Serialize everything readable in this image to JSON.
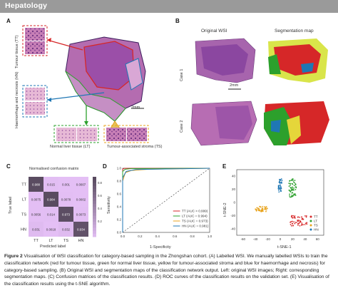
{
  "header": {
    "title": "Hepatology"
  },
  "panelA": {
    "letter": "A",
    "tt_label": "Tumour tissue (TT)",
    "hn_label": "Haemorrhage and necrosis (HN)",
    "lt_label": "Normal liver tissue (LT)",
    "ts_label": "Tumour-associated stroma (TS)",
    "scale": "2mm"
  },
  "panelB": {
    "letter": "B",
    "col1": "Original WSI",
    "col2": "Segmentation map",
    "row1": "Case 1",
    "row2": "Case 2",
    "scale": "2mm"
  },
  "panelC": {
    "letter": "C",
    "title": "Normalised confusion matrix",
    "ylabel": "True label",
    "xlabel": "Predicted label",
    "rows": [
      "TT",
      "LT",
      "TS",
      "HN"
    ],
    "cols": [
      "TT",
      "LT",
      "TS",
      "HN"
    ],
    "values": [
      [
        "0.988",
        "0.015",
        "0.001",
        "0.0007"
      ],
      [
        "0.0075",
        "0.984",
        "0.0078",
        "0.0002"
      ],
      [
        "0.0056",
        "0.014",
        "0.973",
        "0.0073"
      ],
      [
        "0.031",
        "0.0018",
        "0.032",
        "0.934"
      ]
    ],
    "colorbar_ticks": [
      "0.8",
      "0.6",
      "0.4",
      "0.2"
    ]
  },
  "panelD": {
    "letter": "D",
    "ylabel": "Sensitivity",
    "xlabel": "1-Specificity",
    "xticks": [
      "0.0",
      "0.2",
      "0.4",
      "0.6",
      "0.8",
      "1.0"
    ],
    "yticks": [
      "0.0",
      "0.2",
      "0.4",
      "0.6",
      "0.8",
      "1.0"
    ],
    "legend": [
      {
        "label": "TT (AUC > 0.999)",
        "color": "#d62728"
      },
      {
        "label": "LT (AUC = 0.994)",
        "color": "#2ca02c"
      },
      {
        "label": "TS (AUC = 0.973)",
        "color": "#e8a31c"
      },
      {
        "label": "HN (AUC = 0.981)",
        "color": "#1f77b4"
      }
    ]
  },
  "panelE": {
    "letter": "E",
    "ylabel": "t-SNE-2",
    "xlabel": "t-SNE-1",
    "xticks": [
      "-60",
      "-40",
      "-20",
      "0",
      "20",
      "40",
      "60"
    ],
    "yticks": [
      "40",
      "20",
      "0",
      "-20",
      "-40"
    ],
    "legend": [
      {
        "label": "TT",
        "color": "#d62728"
      },
      {
        "label": "LT",
        "color": "#2ca02c"
      },
      {
        "label": "TS",
        "color": "#e8a31c"
      },
      {
        "label": "HN",
        "color": "#1f77b4"
      }
    ]
  },
  "caption": {
    "label": "Figure 2",
    "text": "Visualisation of WSI classification for category-based sampling in the Zhongshan cohort. (A) Labelled WSI. We manually labelled WSIs to train the classification network (red for tumour tissue, green for normal liver tissue, yellow for tumour-associated stroma and blue for haemorrhage and necrosis) for category-based sampling. (B) Original WSI and segmentation maps of the classification network output. Left: original WSI images; Right: corresponding segmentation maps. (C) Confusion matrices of the classification results. (D) ROC curves of the classification results on the validation set. (E) Visualisation of the classification results using the t-SNE algorithm."
  }
}
